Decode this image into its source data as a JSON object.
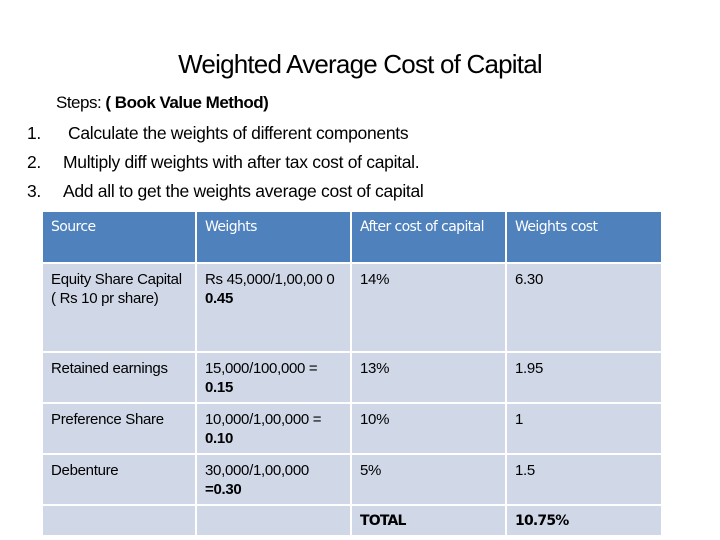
{
  "title": "Weighted Average Cost of Capital",
  "steps_heading": {
    "prefix": "Steps: ",
    "method": "( Book Value Method)"
  },
  "steps": [
    {
      "num": "1.",
      "text": "Calculate the weights of different components"
    },
    {
      "num": "2.",
      "text": "Multiply diff weights with after tax cost of capital."
    },
    {
      "num": "3.",
      "text": "Add all to get the weights average cost of capital"
    }
  ],
  "table": {
    "headers": [
      "Source",
      "Weights",
      "After cost of capital",
      "Weights cost"
    ],
    "rows": [
      {
        "source": "Equity Share Capital ( Rs 10 pr share)",
        "weights_calc": "Rs 45,000/1,00,00 0",
        "weights_result": "0.45",
        "after_cost": "14%",
        "weights_cost": "6.30"
      },
      {
        "source": "Retained earnings",
        "weights_calc": "15,000/100,000 =",
        "weights_result": "0.15",
        "after_cost": "13%",
        "weights_cost": "1.95"
      },
      {
        "source": "Preference Share",
        "weights_calc": "10,000/1,00,000 =",
        "weights_result": "0.10",
        "after_cost": "10%",
        "weights_cost": "1"
      },
      {
        "source": "Debenture",
        "weights_calc": "30,000/1,00,000",
        "weights_result": "=0.30",
        "after_cost": "5%",
        "weights_cost": "1.5"
      }
    ],
    "total_label": "TOTAL",
    "total_value": "10.75%"
  }
}
